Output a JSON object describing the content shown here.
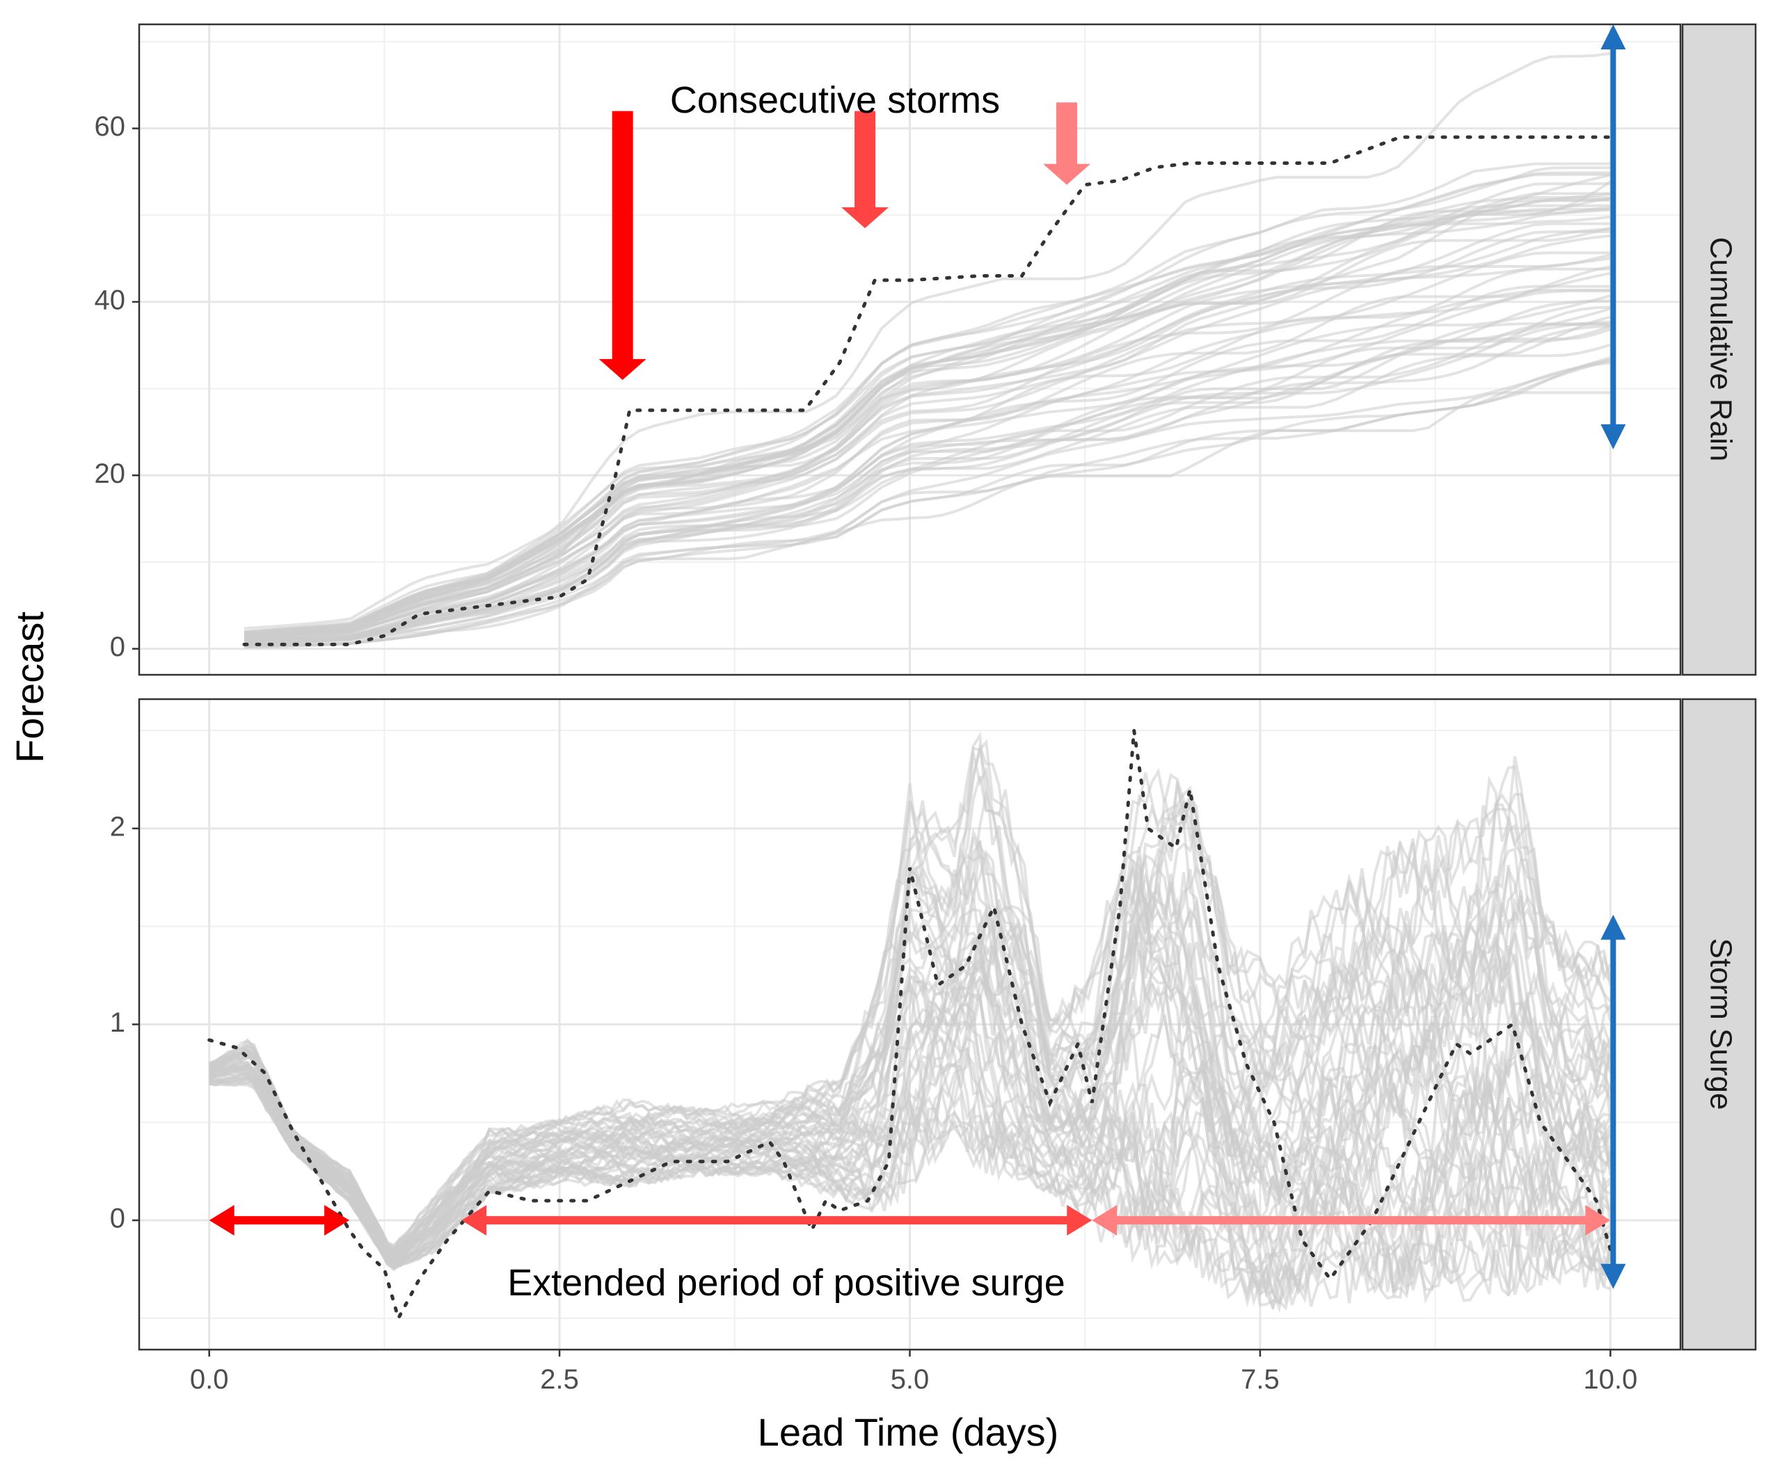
{
  "chart_data": {
    "type": "line",
    "title": "",
    "xlabel": "Lead Time (days)",
    "ylabel": "Forecast",
    "xlim": [
      -0.5,
      10.5
    ],
    "xticks": [
      0.0,
      2.5,
      5.0,
      7.5,
      10.0
    ],
    "xtick_labels": [
      "0.0",
      "2.5",
      "5.0",
      "7.5",
      "10.0"
    ],
    "grid": true,
    "facets": [
      {
        "strip_label": "Cumulative Rain",
        "ylim": [
          -3,
          72
        ],
        "yticks": [
          0,
          20,
          40,
          60
        ],
        "ytick_labels": [
          "0",
          "20",
          "40",
          "60"
        ],
        "ensemble_style": "light grey lines (ensemble members)",
        "ensemble_band": {
          "x": [
            0.25,
            1.0,
            1.5,
            2.0,
            2.5,
            2.8,
            3.0,
            3.5,
            4.2,
            4.5,
            4.8,
            5.0,
            5.5,
            6.0,
            6.5,
            7.0,
            7.5,
            8.0,
            8.5,
            9.0,
            9.5,
            10.0
          ],
          "low": [
            0.2,
            0.6,
            1.5,
            3.0,
            5.0,
            7.0,
            10.0,
            11.0,
            12.0,
            13.0,
            16.0,
            17.0,
            18.0,
            20.0,
            21.0,
            23.0,
            24.0,
            25.0,
            27.0,
            28.0,
            30.0,
            32.0
          ],
          "high": [
            2.0,
            3.0,
            7.0,
            9.0,
            14.0,
            18.0,
            21.0,
            22.0,
            25.0,
            28.0,
            33.0,
            35.0,
            37.0,
            40.0,
            43.0,
            46.0,
            48.0,
            51.0,
            53.0,
            55.0,
            56.0,
            55.0
          ],
          "outer_low": [
            0.0,
            0.0,
            1.0,
            2.0,
            3.0,
            5.0,
            8.0,
            8.5,
            9.0,
            10.0,
            12.0,
            13.0,
            14.0,
            15.0,
            16.0,
            18.0,
            19.0,
            20.0,
            21.0,
            22.0,
            22.5,
            23.0
          ],
          "outer_high": [
            2.5,
            3.5,
            8.0,
            10.0,
            15.0,
            22.0,
            25.0,
            27.0,
            28.0,
            31.0,
            38.0,
            40.0,
            42.0,
            44.0,
            46.0,
            52.0,
            54.0,
            56.0,
            58.0,
            64.0,
            68.0,
            72.0
          ]
        },
        "observed_style": "dark grey dotted line",
        "observed": {
          "x": [
            0.25,
            1.0,
            1.25,
            1.5,
            2.0,
            2.5,
            2.7,
            2.9,
            3.0,
            3.5,
            4.25,
            4.5,
            4.75,
            5.0,
            5.5,
            5.8,
            6.0,
            6.25,
            6.5,
            6.75,
            7.0,
            7.5,
            8.0,
            8.25,
            8.5,
            9.0,
            9.5,
            10.0
          ],
          "y": [
            0.5,
            0.5,
            1.5,
            4.0,
            5.0,
            6.0,
            8.0,
            20.0,
            27.5,
            27.5,
            27.5,
            33.0,
            42.5,
            42.5,
            43.0,
            43.0,
            48.0,
            53.5,
            54.0,
            55.5,
            56.0,
            56.0,
            56.0,
            57.5,
            59.0,
            59.0,
            59.0,
            59.0
          ]
        },
        "annotation": "Consecutive storms",
        "storm_arrow_colors": [
          "#ff0000",
          "#ff4444",
          "#ff8080"
        ],
        "range_arrow_color": "#1f6fbf"
      },
      {
        "strip_label": "Storm Surge",
        "ylim": [
          -0.66,
          2.66
        ],
        "yticks": [
          0,
          1,
          2
        ],
        "ytick_labels": [
          "0",
          "1",
          "2"
        ],
        "ensemble_style": "light grey lines (ensemble members)",
        "ensemble_band": {
          "x": [
            0.0,
            0.3,
            0.6,
            1.0,
            1.3,
            1.6,
            2.0,
            2.5,
            3.0,
            3.5,
            4.0,
            4.5,
            4.8,
            5.0,
            5.3,
            5.5,
            5.8,
            6.0,
            6.3,
            6.6,
            7.0,
            7.3,
            7.6,
            8.0,
            8.5,
            9.0,
            9.3,
            9.6,
            10.0
          ],
          "low": [
            0.7,
            0.7,
            0.35,
            0.1,
            -0.25,
            -0.15,
            0.15,
            0.2,
            0.2,
            0.25,
            0.25,
            0.15,
            0.1,
            0.3,
            0.5,
            0.4,
            0.3,
            0.2,
            0.0,
            -0.05,
            -0.1,
            -0.3,
            -0.35,
            -0.3,
            -0.25,
            -0.25,
            -0.2,
            -0.2,
            -0.25
          ],
          "high": [
            0.8,
            0.92,
            0.45,
            0.25,
            -0.15,
            0.1,
            0.45,
            0.5,
            0.6,
            0.55,
            0.6,
            0.7,
            1.2,
            2.1,
            1.9,
            2.5,
            1.8,
            1.0,
            1.2,
            2.2,
            2.1,
            1.3,
            1.2,
            1.6,
            1.8,
            1.9,
            2.3,
            1.4,
            1.3
          ]
        },
        "observed_style": "dark grey dotted line",
        "observed": {
          "x": [
            0.0,
            0.2,
            0.4,
            0.6,
            0.8,
            1.0,
            1.1,
            1.25,
            1.35,
            1.5,
            1.7,
            2.0,
            2.3,
            2.7,
            3.0,
            3.3,
            3.7,
            4.0,
            4.1,
            4.3,
            4.4,
            4.5,
            4.7,
            4.85,
            5.0,
            5.2,
            5.4,
            5.6,
            5.8,
            6.0,
            6.2,
            6.3,
            6.5,
            6.6,
            6.7,
            6.9,
            7.0,
            7.2,
            7.4,
            7.6,
            7.8,
            8.0,
            8.3,
            8.7,
            8.9,
            9.0,
            9.3,
            9.5,
            9.7,
            9.9,
            10.0
          ],
          "y": [
            0.92,
            0.88,
            0.75,
            0.45,
            0.2,
            -0.05,
            -0.15,
            -0.25,
            -0.5,
            -0.3,
            -0.1,
            0.15,
            0.1,
            0.1,
            0.2,
            0.3,
            0.3,
            0.4,
            0.3,
            -0.05,
            0.1,
            0.05,
            0.1,
            0.3,
            1.8,
            1.2,
            1.3,
            1.6,
            1.0,
            0.6,
            0.9,
            0.6,
            1.6,
            2.5,
            2.0,
            1.9,
            2.2,
            1.3,
            0.8,
            0.5,
            -0.1,
            -0.3,
            0.0,
            0.6,
            0.9,
            0.85,
            1.0,
            0.5,
            0.3,
            0.1,
            -0.15
          ]
        },
        "annotation": "Extended period of positive surge",
        "period_arrows": [
          {
            "from": 0.0,
            "to": 1.0,
            "color": "#ff0000"
          },
          {
            "from": 1.8,
            "to": 6.3,
            "color": "#ff4444"
          },
          {
            "from": 6.3,
            "to": 10.0,
            "color": "#ff8080"
          }
        ],
        "range_arrow_color": "#1f6fbf"
      }
    ]
  }
}
